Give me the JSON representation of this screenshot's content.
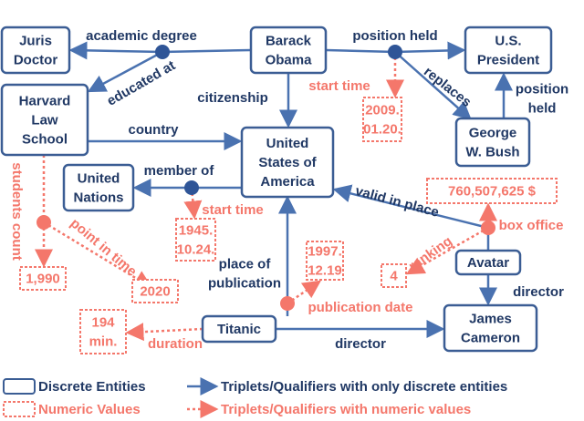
{
  "entities": [
    [
      "Juris",
      "Doctor"
    ],
    [
      "Barack",
      "Obama"
    ],
    [
      "U.S.",
      "President"
    ],
    [
      "Harvard",
      "Law",
      "School"
    ],
    [
      "United",
      "States of",
      "America"
    ],
    [
      "George",
      "W. Bush"
    ],
    [
      "United",
      "Nations"
    ],
    [
      "Avatar"
    ],
    [
      "Titanic"
    ],
    [
      "James",
      "Cameron"
    ]
  ],
  "numeric_values": [
    [
      "2009.",
      "01.20."
    ],
    [
      "760,507,625 $"
    ],
    [
      "1945.",
      "10.24."
    ],
    [
      "1997.",
      "12.19"
    ],
    [
      "4"
    ],
    [
      "1,990"
    ],
    [
      "2020"
    ],
    [
      "194",
      "min."
    ]
  ],
  "relations": [
    [
      "academic degree"
    ],
    [
      "position held"
    ],
    [
      "educated at"
    ],
    [
      "replaces"
    ],
    [
      "position",
      "held"
    ],
    [
      "citizenship"
    ],
    [
      "country"
    ],
    [
      "member of"
    ],
    [
      "valid in place"
    ],
    [
      "place of",
      "publication"
    ],
    [
      "director"
    ],
    [
      "director"
    ]
  ],
  "numeric_relations": [
    [
      "start time"
    ],
    [
      "start time"
    ],
    [
      "students count"
    ],
    [
      "point in time"
    ],
    [
      "box office"
    ],
    [
      "ranking"
    ],
    [
      "publication date"
    ],
    [
      "duration"
    ]
  ],
  "legend": [
    "Discrete Entities",
    "Triplets/Qualifiers with only discrete entities",
    "Numeric Values",
    "Triplets/Qualifiers with numeric values"
  ]
}
